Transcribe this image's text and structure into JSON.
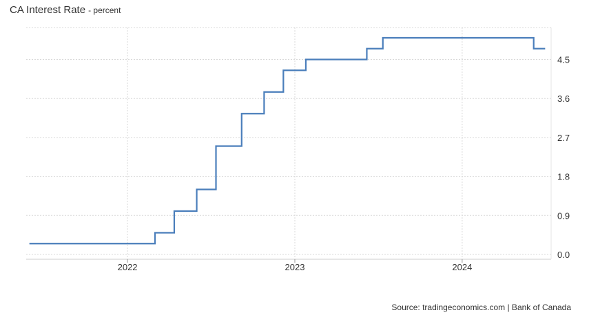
{
  "header": {
    "title": "CA Interest Rate",
    "subtitle": "- percent"
  },
  "footer": {
    "source": "Source: tradingeconomics.com | Bank of Canada"
  },
  "colors": {
    "line": "#4a7ebb",
    "grid": "#d9d9d9",
    "text": "#333333"
  },
  "chart_data": {
    "type": "line",
    "title": "CA Interest Rate",
    "subtitle": "- percent",
    "xlabel": "",
    "ylabel": "",
    "y_ticks": [
      "0.0",
      "0.9",
      "1.8",
      "2.7",
      "3.6",
      "4.5"
    ],
    "x_ticks": [
      "2022",
      "2023",
      "2024"
    ],
    "ylim": [
      0,
      5.0
    ],
    "grid": true,
    "series": [
      {
        "step": "post",
        "values": [
          {
            "x": "2021-06-01",
            "y": 0.25
          },
          {
            "x": "2022-03-02",
            "y": 0.5
          },
          {
            "x": "2022-04-13",
            "y": 1.0
          },
          {
            "x": "2022-06-01",
            "y": 1.5
          },
          {
            "x": "2022-07-13",
            "y": 2.5
          },
          {
            "x": "2022-09-07",
            "y": 3.25
          },
          {
            "x": "2022-10-26",
            "y": 3.75
          },
          {
            "x": "2022-12-07",
            "y": 4.25
          },
          {
            "x": "2023-01-25",
            "y": 4.5
          },
          {
            "x": "2023-06-07",
            "y": 4.75
          },
          {
            "x": "2023-07-12",
            "y": 5.0
          },
          {
            "x": "2024-06-05",
            "y": 4.75
          },
          {
            "x": "2024-06-30",
            "y": 4.75
          }
        ]
      }
    ]
  }
}
